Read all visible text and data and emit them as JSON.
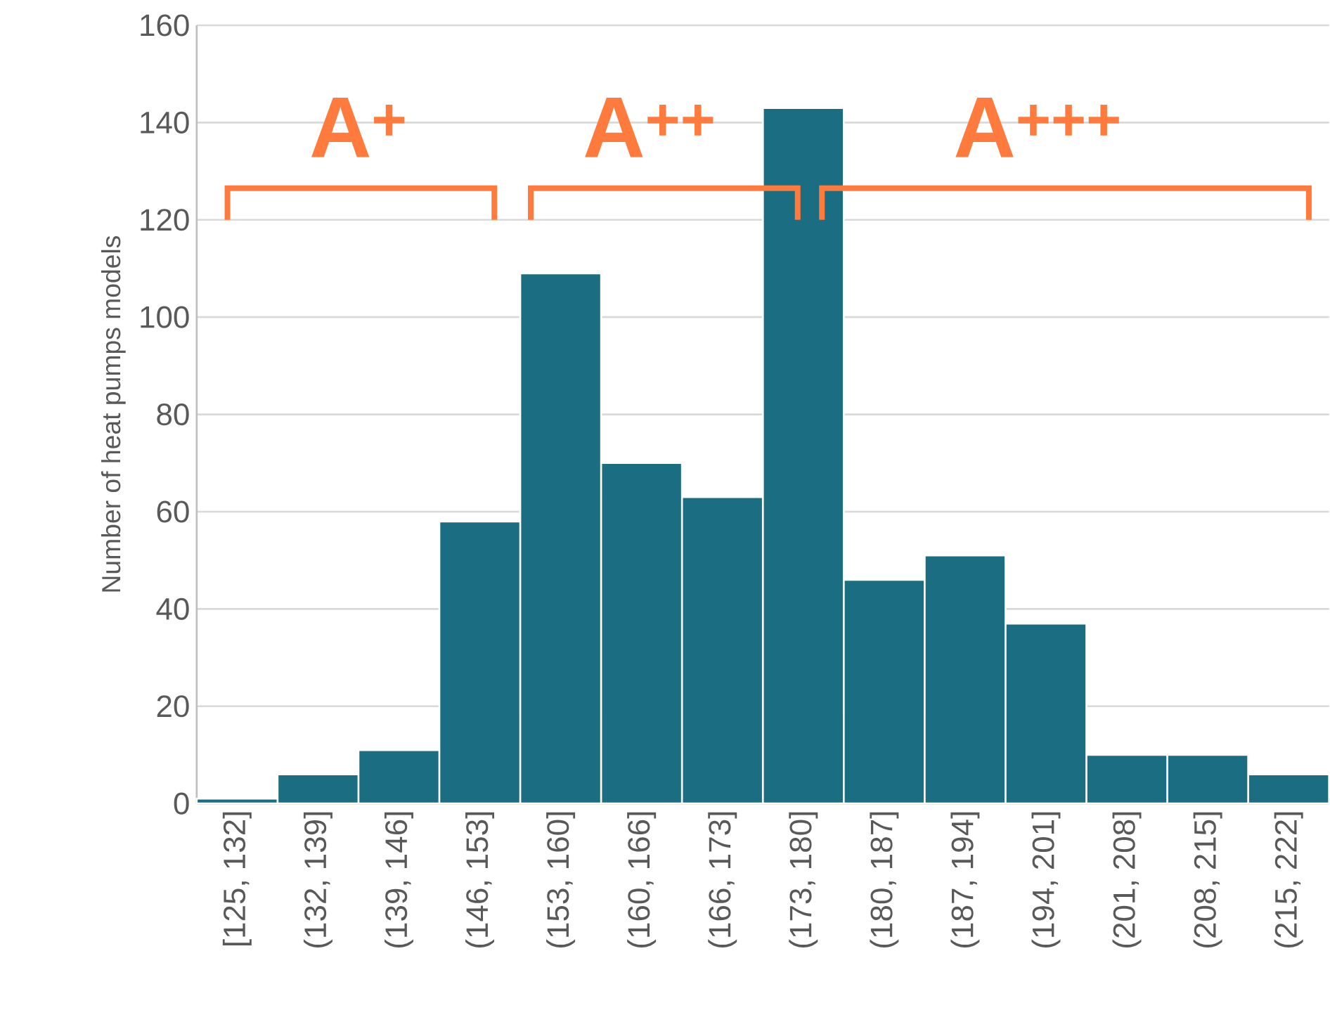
{
  "chart_data": {
    "type": "bar",
    "ylabel": "Number of heat pumps models",
    "categories": [
      "[125, 132]",
      "(132, 139]",
      "(139, 146]",
      "(146, 153]",
      "(153, 160]",
      "(160, 166]",
      "(166, 173]",
      "(173, 180]",
      "(180, 187]",
      "(187, 194]",
      "(194, 201]",
      "(201, 208]",
      "(208, 215]",
      "(215, 222]"
    ],
    "values": [
      1,
      6,
      11,
      58,
      109,
      70,
      63,
      143,
      46,
      51,
      37,
      10,
      10,
      6
    ],
    "color": "#1b6e82",
    "ylim": [
      0,
      160
    ],
    "yticks": [
      0,
      20,
      40,
      60,
      80,
      100,
      120,
      140,
      160
    ],
    "grid": "y",
    "annotations": [
      "A$^{+}$",
      "A$^{++}$",
      "A$^{+++}$"
    ]
  }
}
